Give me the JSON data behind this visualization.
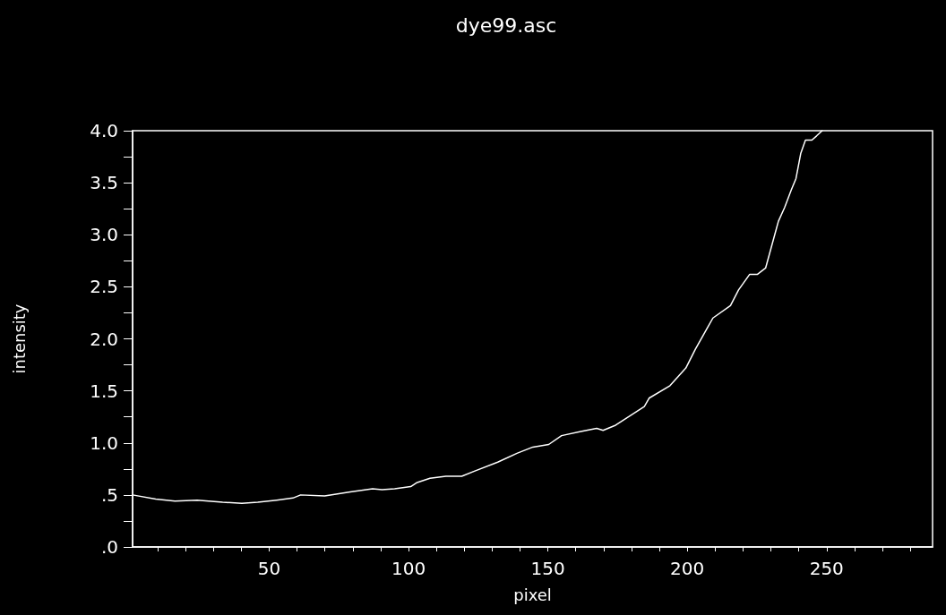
{
  "chart_data": {
    "type": "line",
    "title": "dye99.asc",
    "xlabel": "pixel",
    "ylabel": "intensity",
    "series": [
      {
        "color": "#ffffff",
        "x": [
          1,
          9.3,
          16.2,
          24.2,
          33.3,
          40.2,
          45.9,
          52.7,
          58.5,
          61.3,
          69.9,
          79.1,
          87.1,
          90.5,
          95,
          100.8,
          103.1,
          107.7,
          113.4,
          119.1,
          123.8,
          132.0,
          138.9,
          144.6,
          150.3,
          154.9,
          161.8,
          167.5,
          169.8,
          174.3,
          178.9,
          184.6,
          186.3,
          193.8,
          199.5,
          202.9,
          207.5,
          209.2,
          215.5,
          218.4,
          222.4,
          225.2,
          228.1,
          232.7,
          234.9,
          237.3,
          239.0,
          240.7,
          242.4,
          244.7,
          246.4,
          248.4
        ],
        "values": [
          0.5,
          0.46,
          0.44,
          0.45,
          0.43,
          0.42,
          0.43,
          0.45,
          0.47,
          0.5,
          0.49,
          0.53,
          0.56,
          0.55,
          0.56,
          0.58,
          0.62,
          0.66,
          0.68,
          0.68,
          0.73,
          0.815,
          0.9,
          0.96,
          0.985,
          1.07,
          1.11,
          1.14,
          1.12,
          1.17,
          1.25,
          1.35,
          1.43,
          1.55,
          1.72,
          1.9,
          2.12,
          2.2,
          2.32,
          2.47,
          2.62,
          2.62,
          2.68,
          3.13,
          3.26,
          3.43,
          3.54,
          3.78,
          3.91,
          3.91,
          3.95,
          4.0
        ]
      }
    ],
    "xlim": [
      1,
      288
    ],
    "xticks": [
      {
        "value": 10,
        "label": null
      },
      {
        "value": 20,
        "label": null
      },
      {
        "value": 30,
        "label": null
      },
      {
        "value": 40,
        "label": null
      },
      50,
      {
        "value": 60,
        "label": null
      },
      {
        "value": 70,
        "label": null
      },
      {
        "value": 80,
        "label": null
      },
      {
        "value": 90,
        "label": null
      },
      100,
      {
        "value": 110,
        "label": null
      },
      {
        "value": 120,
        "label": null
      },
      {
        "value": 130,
        "label": null
      },
      {
        "value": 140,
        "label": null
      },
      150,
      {
        "value": 160,
        "label": null
      },
      {
        "value": 170,
        "label": null
      },
      {
        "value": 180,
        "label": null
      },
      {
        "value": 190,
        "label": null
      },
      200,
      {
        "value": 210,
        "label": null
      },
      {
        "value": 220,
        "label": null
      },
      {
        "value": 230,
        "label": null
      },
      {
        "value": 240,
        "label": null
      },
      250,
      {
        "value": 260,
        "label": null
      },
      {
        "value": 270,
        "label": null
      },
      {
        "value": 280,
        "label": null
      }
    ],
    "ylim": [
      0,
      4
    ],
    "yticks": [
      {
        "value": 0,
        "label": ".0"
      },
      {
        "value": 0.25,
        "label": null
      },
      {
        "value": 0.5,
        "label": ".5"
      },
      {
        "value": 0.75,
        "label": null
      },
      {
        "value": 1,
        "label": "1.0"
      },
      {
        "value": 1.25,
        "label": null
      },
      {
        "value": 1.5,
        "label": "1.5"
      },
      {
        "value": 1.75,
        "label": null
      },
      {
        "value": 2,
        "label": "2.0"
      },
      {
        "value": 2.25,
        "label": null
      },
      {
        "value": 2.5,
        "label": "2.5"
      },
      {
        "value": 2.75,
        "label": null
      },
      {
        "value": 3,
        "label": "3.0"
      },
      {
        "value": 3.25,
        "label": null
      },
      {
        "value": 3.5,
        "label": "3.5"
      },
      {
        "value": 3.75,
        "label": null
      },
      {
        "value": 4,
        "label": "4.0"
      }
    ],
    "grid": false,
    "marker": "none",
    "line_style": "solid"
  }
}
